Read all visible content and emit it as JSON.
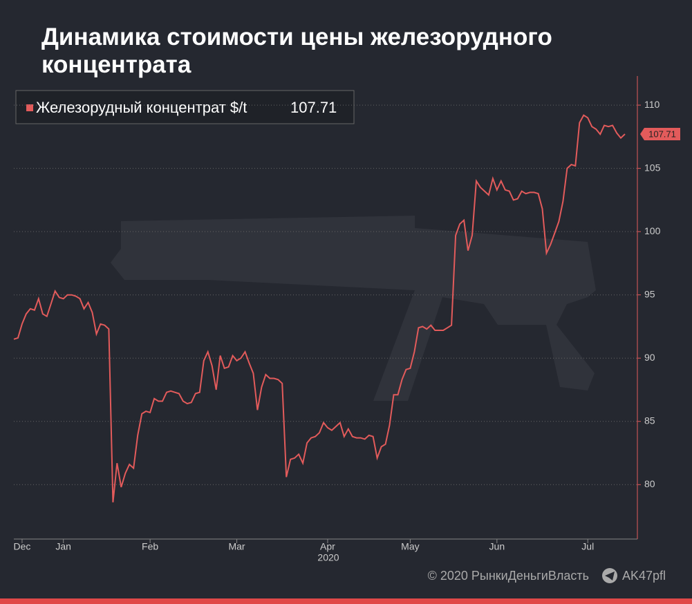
{
  "chart_data": {
    "type": "line",
    "title": "Динамика стоимости цены железорудного концентрата",
    "x_sublabel": "2020",
    "footer": {
      "copyright": "© 2020  РынкиДеньгиВласть",
      "channel": "AK47pfl"
    },
    "categories": [
      null,
      null,
      "Dec",
      null,
      null,
      null,
      null,
      null,
      null,
      null,
      null,
      null,
      "Jan",
      null,
      null,
      null,
      null,
      null,
      null,
      null,
      null,
      null,
      null,
      null,
      null,
      null,
      null,
      null,
      null,
      null,
      null,
      null,
      null,
      "Feb",
      null,
      null,
      null,
      null,
      null,
      null,
      null,
      null,
      null,
      null,
      null,
      null,
      null,
      null,
      null,
      null,
      null,
      null,
      null,
      null,
      "Mar",
      null,
      null,
      null,
      null,
      null,
      null,
      null,
      null,
      null,
      null,
      null,
      null,
      null,
      null,
      null,
      null,
      null,
      null,
      null,
      null,
      null,
      "Apr",
      null,
      null,
      null,
      null,
      null,
      null,
      null,
      null,
      null,
      null,
      null,
      null,
      null,
      null,
      null,
      null,
      null,
      null,
      null,
      "May",
      null,
      null,
      null,
      null,
      null,
      null,
      null,
      null,
      null,
      null,
      null,
      null,
      null,
      null,
      null,
      null,
      null,
      null,
      null,
      null,
      "Jun",
      null,
      null,
      null,
      null,
      null,
      null,
      null,
      null,
      null,
      null,
      null,
      null,
      null,
      null,
      null,
      null,
      null,
      null,
      null,
      null,
      null,
      "Jul",
      null,
      null,
      null,
      null,
      null,
      null,
      null,
      null,
      null
    ],
    "series": [
      {
        "name": "Железорудный концентрат $/t",
        "color": "#e35b5b",
        "values": [
          91.5,
          91.6,
          92.7,
          93.5,
          93.9,
          93.8,
          94.7,
          93.5,
          93.3,
          94.3,
          95.3,
          94.8,
          94.7,
          95.0,
          95.0,
          94.9,
          94.7,
          93.9,
          94.4,
          93.6,
          91.9,
          92.7,
          92.6,
          92.3,
          78.6,
          81.7,
          79.8,
          80.9,
          81.6,
          81.3,
          83.9,
          85.6,
          85.8,
          85.7,
          86.8,
          86.6,
          86.6,
          87.3,
          87.4,
          87.3,
          87.2,
          86.6,
          86.4,
          86.5,
          87.2,
          87.3,
          89.8,
          90.5,
          89.4,
          87.5,
          90.2,
          89.2,
          89.3,
          90.2,
          89.8,
          90.0,
          90.5,
          89.6,
          88.8,
          85.9,
          87.7,
          88.7,
          88.4,
          88.4,
          88.3,
          88.0,
          80.6,
          82.0,
          82.1,
          82.4,
          81.7,
          83.3,
          83.7,
          83.8,
          84.1,
          84.9,
          84.5,
          84.3,
          84.6,
          84.9,
          83.8,
          84.4,
          83.8,
          83.7,
          83.7,
          83.6,
          83.9,
          83.8,
          82.1,
          83.0,
          83.2,
          84.7,
          87.1,
          87.1,
          88.3,
          89.1,
          89.2,
          90.5,
          92.4,
          92.5,
          92.3,
          92.6,
          92.2,
          92.2,
          92.2,
          92.4,
          92.6,
          99.7,
          100.6,
          100.9,
          98.5,
          99.7,
          104.0,
          103.5,
          103.2,
          102.9,
          104.2,
          103.3,
          104.0,
          103.3,
          103.2,
          102.5,
          102.6,
          103.2,
          103.0,
          103.1,
          103.1,
          103.0,
          101.8,
          98.3,
          99.0,
          99.9,
          100.8,
          102.4,
          105.0,
          105.3,
          105.2,
          108.6,
          109.2,
          109.0,
          108.3,
          108.1,
          107.7,
          108.4,
          108.3,
          108.4,
          107.8,
          107.4,
          107.71
        ]
      }
    ],
    "ylim": [
      75.7,
      112.3
    ],
    "yticks": [
      80,
      85,
      90,
      95,
      100,
      105,
      110
    ],
    "grid": true
  }
}
